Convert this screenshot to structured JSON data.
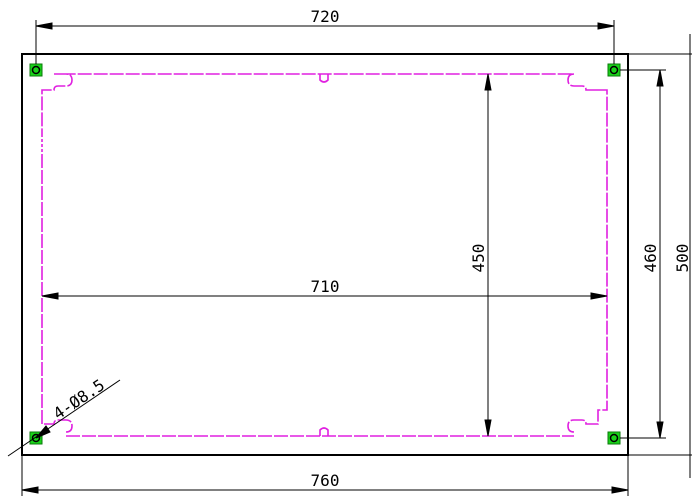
{
  "dimensions": {
    "top_hole_spacing": "720",
    "bottom_overall_width": "760",
    "inner_width": "710",
    "inner_height": "450",
    "hole_vertical_spacing": "460",
    "overall_height": "500"
  },
  "hole_callout": "4-Ø8.5",
  "colors": {
    "outline": "#000000",
    "cutout": "#e020e0",
    "hole_marker": "#19d119",
    "dimension": "#000000"
  }
}
